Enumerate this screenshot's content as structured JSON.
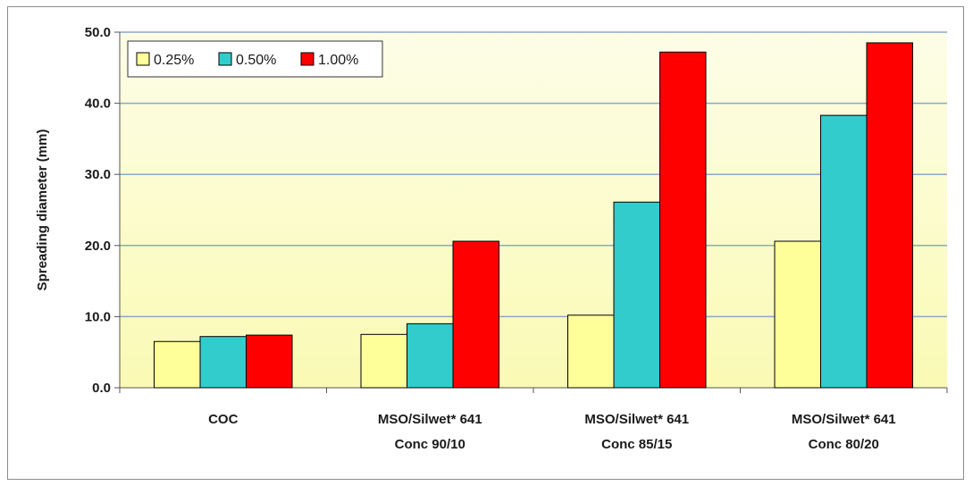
{
  "chart_data": {
    "type": "bar",
    "title": "",
    "xlabel": "",
    "ylabel": "Spreading diameter (mm)",
    "ylim": [
      0,
      50
    ],
    "yticks": [
      "0.0",
      "10.0",
      "20.0",
      "30.0",
      "40.0",
      "50.0"
    ],
    "grid": true,
    "legend_position": "top-left",
    "categories": [
      [
        "COC"
      ],
      [
        "MSO/Silwet* 641",
        "Conc 90/10"
      ],
      [
        "MSO/Silwet* 641",
        "Conc 85/15"
      ],
      [
        "MSO/Silwet* 641",
        "Conc 80/20"
      ]
    ],
    "series": [
      {
        "name": "0.25%",
        "color": "#ffff99",
        "values": [
          6.5,
          7.5,
          10.2,
          20.6
        ]
      },
      {
        "name": "0.50%",
        "color": "#33cccc",
        "values": [
          7.2,
          9.0,
          26.1,
          38.3
        ]
      },
      {
        "name": "1.00%",
        "color": "#ff0000",
        "values": [
          7.4,
          20.6,
          47.2,
          48.5
        ]
      }
    ],
    "colors": {
      "plot_background_top": "#fdfde8",
      "plot_background_bottom": "#fafab4",
      "gridline": "#8aa8c8",
      "bar_outline": "#000000"
    }
  }
}
